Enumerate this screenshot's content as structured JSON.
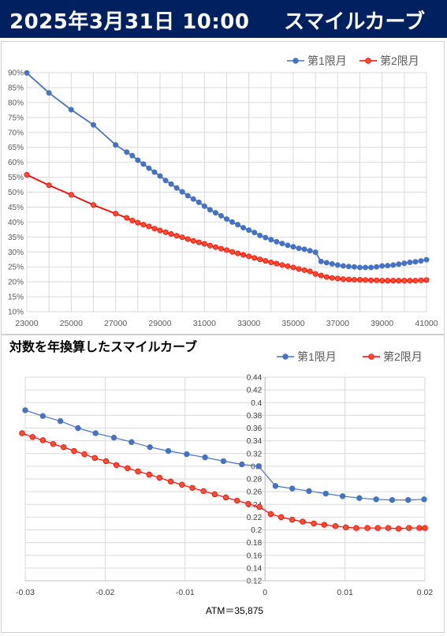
{
  "header": {
    "date": "2025年3月31日 10:00",
    "title": "スマイルカーブ"
  },
  "colors": {
    "header_bg": "#002060",
    "series1": "#4472C4",
    "series2": "#FF0000",
    "series2_marker": "#FF4D2E"
  },
  "chart_data": [
    {
      "type": "line",
      "title": "",
      "xlim": [
        23000,
        41000
      ],
      "ylim": [
        0.1,
        0.9
      ],
      "xticks": [
        "23000",
        "25000",
        "27000",
        "29000",
        "31000",
        "33000",
        "35000",
        "37000",
        "39000",
        "41000"
      ],
      "yticks": [
        "10%",
        "15%",
        "20%",
        "25%",
        "30%",
        "35%",
        "40%",
        "45%",
        "50%",
        "55%",
        "60%",
        "65%",
        "70%",
        "75%",
        "80%",
        "85%",
        "90%"
      ],
      "legend": "top-right",
      "grid": true,
      "series": [
        {
          "name": "第1限月",
          "x": [
            23000,
            24000,
            25000,
            26000,
            27000,
            27500,
            27750,
            28000,
            28250,
            28500,
            28750,
            29000,
            29250,
            29500,
            29750,
            30000,
            30250,
            30500,
            30750,
            31000,
            31250,
            31500,
            31750,
            32000,
            32250,
            32500,
            32750,
            33000,
            33250,
            33500,
            33750,
            34000,
            34250,
            34500,
            34750,
            35000,
            35250,
            35500,
            35750,
            36000,
            36250,
            36500,
            36750,
            37000,
            37250,
            37500,
            37750,
            38000,
            38250,
            38500,
            38750,
            39000,
            39250,
            39500,
            39750,
            40000,
            40250,
            40500,
            40750,
            41000
          ],
          "y": [
            0.899,
            0.832,
            0.776,
            0.725,
            0.658,
            0.634,
            0.622,
            0.607,
            0.594,
            0.58,
            0.567,
            0.554,
            0.539,
            0.527,
            0.514,
            0.501,
            0.488,
            0.477,
            0.466,
            0.453,
            0.441,
            0.431,
            0.421,
            0.41,
            0.4,
            0.391,
            0.381,
            0.373,
            0.365,
            0.355,
            0.348,
            0.341,
            0.334,
            0.328,
            0.322,
            0.317,
            0.312,
            0.309,
            0.304,
            0.299,
            0.268,
            0.264,
            0.26,
            0.256,
            0.253,
            0.251,
            0.25,
            0.248,
            0.248,
            0.248,
            0.25,
            0.253,
            0.254,
            0.256,
            0.259,
            0.262,
            0.265,
            0.267,
            0.27,
            0.274
          ]
        },
        {
          "name": "第2限月",
          "x": [
            23000,
            24000,
            25000,
            26000,
            27000,
            27500,
            27750,
            28000,
            28250,
            28500,
            28750,
            29000,
            29250,
            29500,
            29750,
            30000,
            30250,
            30500,
            30750,
            31000,
            31250,
            31500,
            31750,
            32000,
            32250,
            32500,
            32750,
            33000,
            33250,
            33500,
            33750,
            34000,
            34250,
            34500,
            34750,
            35000,
            35250,
            35500,
            35750,
            36000,
            36250,
            36500,
            36750,
            37000,
            37250,
            37500,
            37750,
            38000,
            38250,
            38500,
            38750,
            39000,
            39250,
            39500,
            39750,
            40000,
            40250,
            40500,
            40750,
            41000
          ],
          "y": [
            0.558,
            0.523,
            0.491,
            0.457,
            0.428,
            0.414,
            0.405,
            0.398,
            0.391,
            0.385,
            0.378,
            0.372,
            0.366,
            0.36,
            0.354,
            0.349,
            0.343,
            0.337,
            0.332,
            0.327,
            0.321,
            0.316,
            0.311,
            0.306,
            0.3,
            0.295,
            0.29,
            0.285,
            0.28,
            0.275,
            0.27,
            0.265,
            0.261,
            0.256,
            0.252,
            0.248,
            0.243,
            0.239,
            0.235,
            0.226,
            0.221,
            0.216,
            0.213,
            0.211,
            0.209,
            0.208,
            0.207,
            0.207,
            0.206,
            0.205,
            0.205,
            0.204,
            0.204,
            0.204,
            0.204,
            0.204,
            0.204,
            0.204,
            0.205,
            0.206
          ]
        }
      ]
    },
    {
      "type": "line",
      "title": "対数を年換算したスマイルカーブ",
      "xlim": [
        -0.03,
        0.02
      ],
      "ylim": [
        0.12,
        0.44
      ],
      "xticks": [
        "-0.03",
        "-0.02",
        "-0.01",
        "0",
        "0.01",
        "0.02"
      ],
      "yticks": [
        "0.12",
        "0.14",
        "0.16",
        "0.18",
        "0.2",
        "0.22",
        "0.24",
        "0.26",
        "0.28",
        "0.3",
        "0.32",
        "0.34",
        "0.36",
        "0.38",
        "0.4",
        "0.42",
        "0.44"
      ],
      "xlabel": "ATM＝35,875",
      "legend": "top-right",
      "grid": true,
      "series": [
        {
          "name": "第1限月",
          "x": [
            -0.03,
            -0.0278,
            -0.0256,
            -0.0234,
            -0.0212,
            -0.0189,
            -0.0167,
            -0.0144,
            -0.0121,
            -0.0098,
            -0.0075,
            -0.0052,
            -0.0029,
            -0.0008,
            0.0013,
            0.0034,
            0.0055,
            0.0076,
            0.0097,
            0.0118,
            0.0139,
            0.0159,
            0.0179,
            0.0199
          ],
          "y": [
            0.388,
            0.379,
            0.371,
            0.36,
            0.352,
            0.345,
            0.338,
            0.33,
            0.324,
            0.319,
            0.314,
            0.308,
            0.303,
            0.3,
            0.269,
            0.265,
            0.261,
            0.257,
            0.253,
            0.25,
            0.248,
            0.247,
            0.247,
            0.248
          ]
        },
        {
          "name": "第2限月",
          "x": [
            -0.0304,
            -0.0291,
            -0.0278,
            -0.0265,
            -0.0252,
            -0.0239,
            -0.0226,
            -0.0213,
            -0.0199,
            -0.0186,
            -0.0172,
            -0.0159,
            -0.0145,
            -0.0132,
            -0.0118,
            -0.0104,
            -0.0091,
            -0.0077,
            -0.0063,
            -0.0049,
            -0.0035,
            -0.0021,
            -0.0007,
            0.0007,
            0.002,
            0.0034,
            0.0047,
            0.0061,
            0.0074,
            0.0088,
            0.0101,
            0.0114,
            0.0128,
            0.0141,
            0.0154,
            0.0167,
            0.018,
            0.0193,
            0.02
          ],
          "y": [
            0.352,
            0.346,
            0.341,
            0.335,
            0.33,
            0.324,
            0.319,
            0.313,
            0.308,
            0.302,
            0.297,
            0.292,
            0.287,
            0.282,
            0.276,
            0.271,
            0.266,
            0.261,
            0.256,
            0.251,
            0.246,
            0.241,
            0.236,
            0.225,
            0.22,
            0.216,
            0.213,
            0.21,
            0.208,
            0.206,
            0.204,
            0.203,
            0.203,
            0.203,
            0.203,
            0.202,
            0.203,
            0.203,
            0.203
          ]
        }
      ]
    }
  ]
}
